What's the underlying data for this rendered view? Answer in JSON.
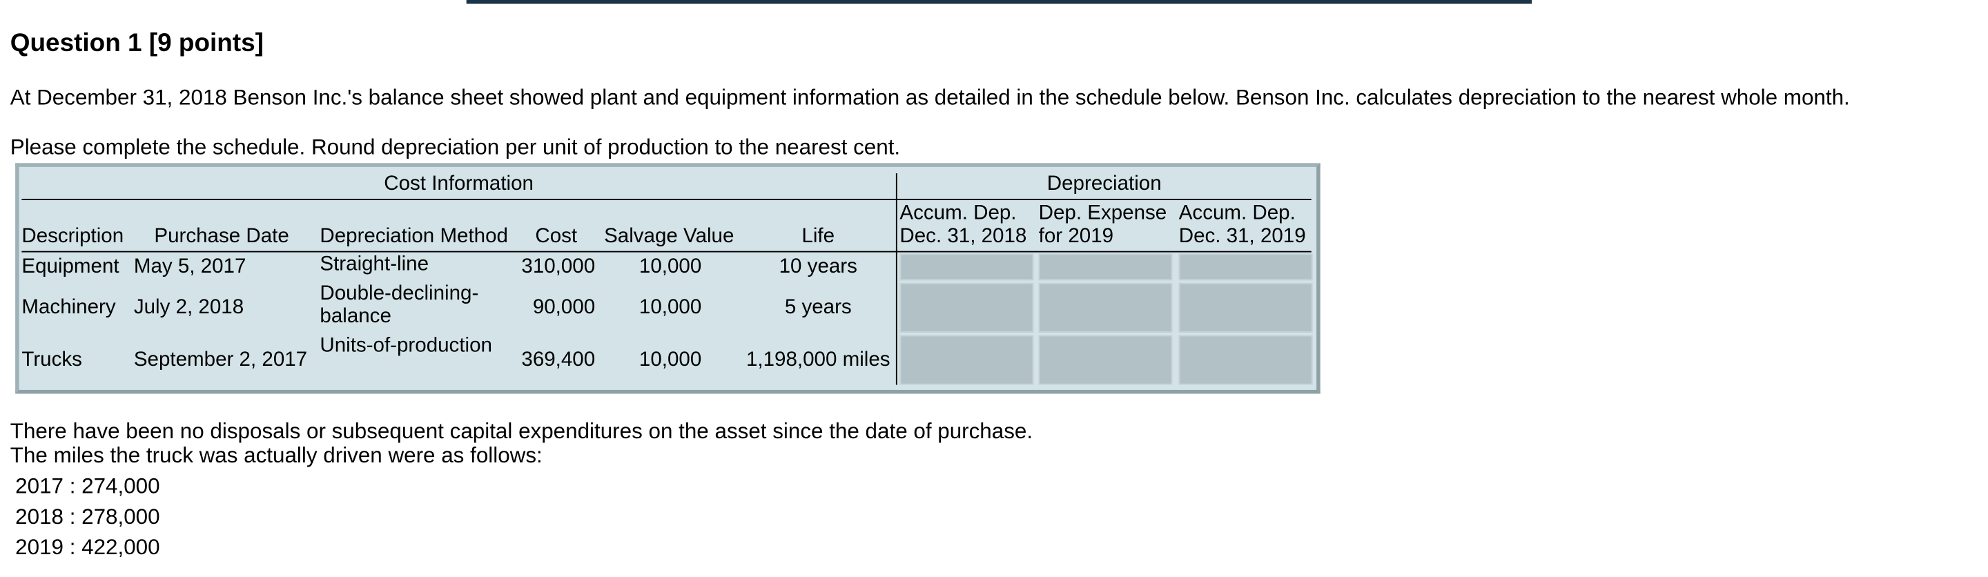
{
  "header": {
    "title": "Question 1 [9 points]"
  },
  "intro": [
    "At December 31, 2018 Benson Inc.'s balance sheet showed plant and equipment information as detailed in the schedule below. Benson Inc. calculates depreciation to the nearest whole month.",
    "Please complete the schedule. Round depreciation per unit of production to the nearest cent."
  ],
  "table": {
    "group_headers": [
      "Cost Information",
      "Depreciation"
    ],
    "columns": [
      "Description",
      "Purchase Date",
      "Depreciation Method",
      "Cost",
      "Salvage Value",
      "Life",
      "Accum. Dep. Dec. 31, 2018",
      "Dep. Expense for 2019",
      "Accum. Dep. Dec. 31, 2019"
    ],
    "rows": [
      [
        "Equipment",
        "May 5, 2017",
        "Straight-line",
        "310,000",
        "10,000",
        "10 years"
      ],
      [
        "Machinery",
        "July 2, 2018",
        "Double-declining-balance",
        "90,000",
        "10,000",
        "5 years"
      ],
      [
        "Trucks",
        "September 2, 2017",
        "Units-of-production",
        "369,400",
        "10,000",
        "1,198,000 miles"
      ]
    ]
  },
  "notes": [
    "There have been no disposals or subsequent capital expenditures on the asset since the date of purchase.",
    "The miles the truck was actually driven were as follows:"
  ],
  "miles": [
    "2017 : 274,000",
    "2018 : 278,000",
    "2019 : 422,000"
  ]
}
